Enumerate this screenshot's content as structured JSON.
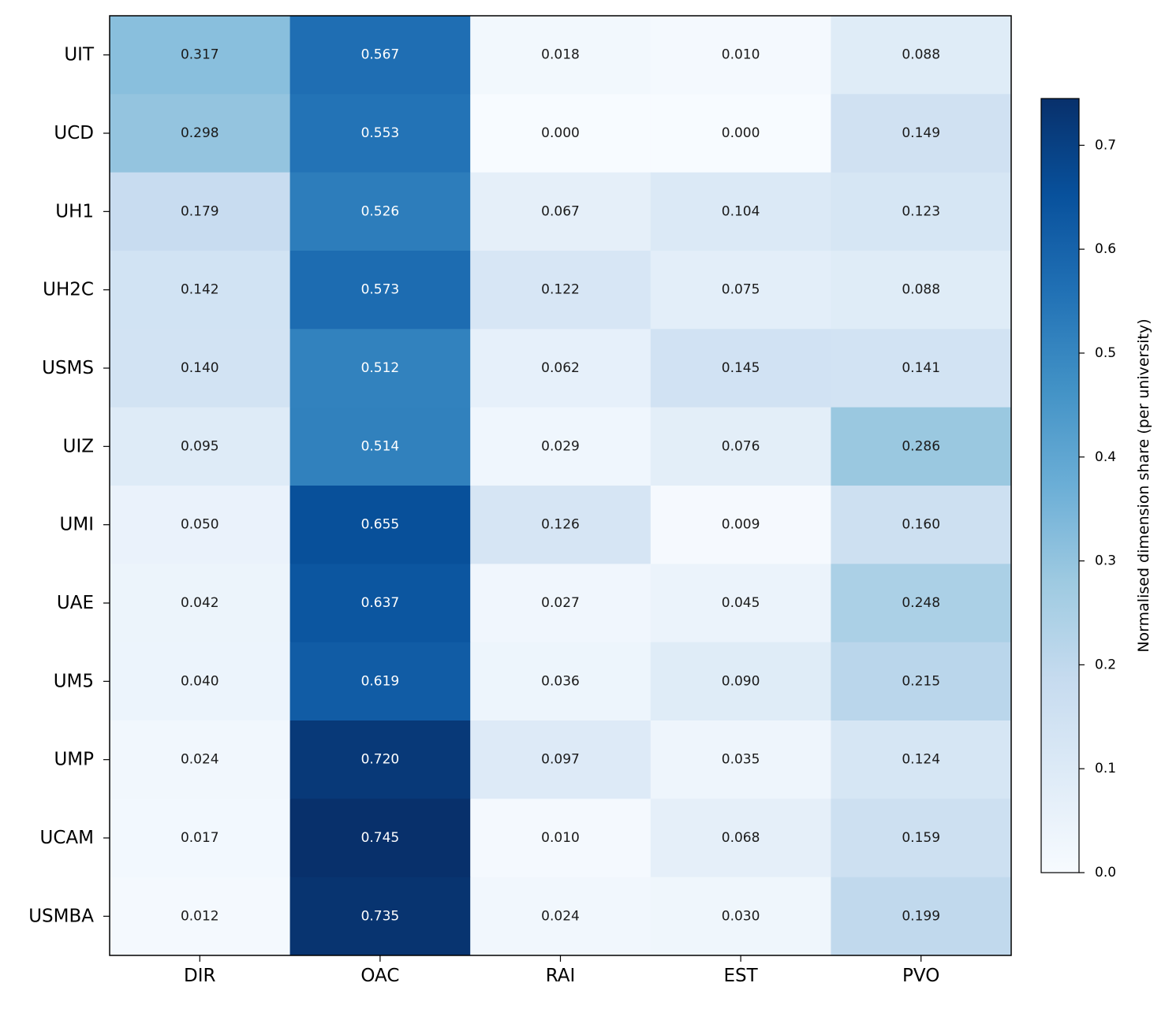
{
  "chart_data": {
    "type": "heatmap",
    "title": "",
    "xlabel": "",
    "ylabel": "",
    "x_categories": [
      "DIR",
      "OAC",
      "RAI",
      "EST",
      "PVO"
    ],
    "y_categories": [
      "UIT",
      "UCD",
      "UH1",
      "UH2C",
      "USMS",
      "UIZ",
      "UMI",
      "UAE",
      "UM5",
      "UMP",
      "UCAM",
      "USMBA"
    ],
    "values": [
      [
        0.317,
        0.567,
        0.018,
        0.01,
        0.088
      ],
      [
        0.298,
        0.553,
        0.0,
        0.0,
        0.149
      ],
      [
        0.179,
        0.526,
        0.067,
        0.104,
        0.123
      ],
      [
        0.142,
        0.573,
        0.122,
        0.075,
        0.088
      ],
      [
        0.14,
        0.512,
        0.062,
        0.145,
        0.141
      ],
      [
        0.095,
        0.514,
        0.029,
        0.076,
        0.286
      ],
      [
        0.05,
        0.655,
        0.126,
        0.009,
        0.16
      ],
      [
        0.042,
        0.637,
        0.027,
        0.045,
        0.248
      ],
      [
        0.04,
        0.619,
        0.036,
        0.09,
        0.215
      ],
      [
        0.024,
        0.72,
        0.097,
        0.035,
        0.124
      ],
      [
        0.017,
        0.745,
        0.01,
        0.068,
        0.159
      ],
      [
        0.012,
        0.735,
        0.024,
        0.03,
        0.199
      ]
    ],
    "value_format": "0.000",
    "colormap": "Blues",
    "colorbar": {
      "label": "Normalised dimension share (per university)",
      "range": [
        0.0,
        0.745
      ],
      "ticks": [
        "0.0",
        "0.1",
        "0.2",
        "0.3",
        "0.4",
        "0.5",
        "0.6",
        "0.7"
      ],
      "tick_values": [
        0.0,
        0.1,
        0.2,
        0.3,
        0.4,
        0.5,
        0.6,
        0.7
      ],
      "placement": "right"
    },
    "grid": false
  }
}
